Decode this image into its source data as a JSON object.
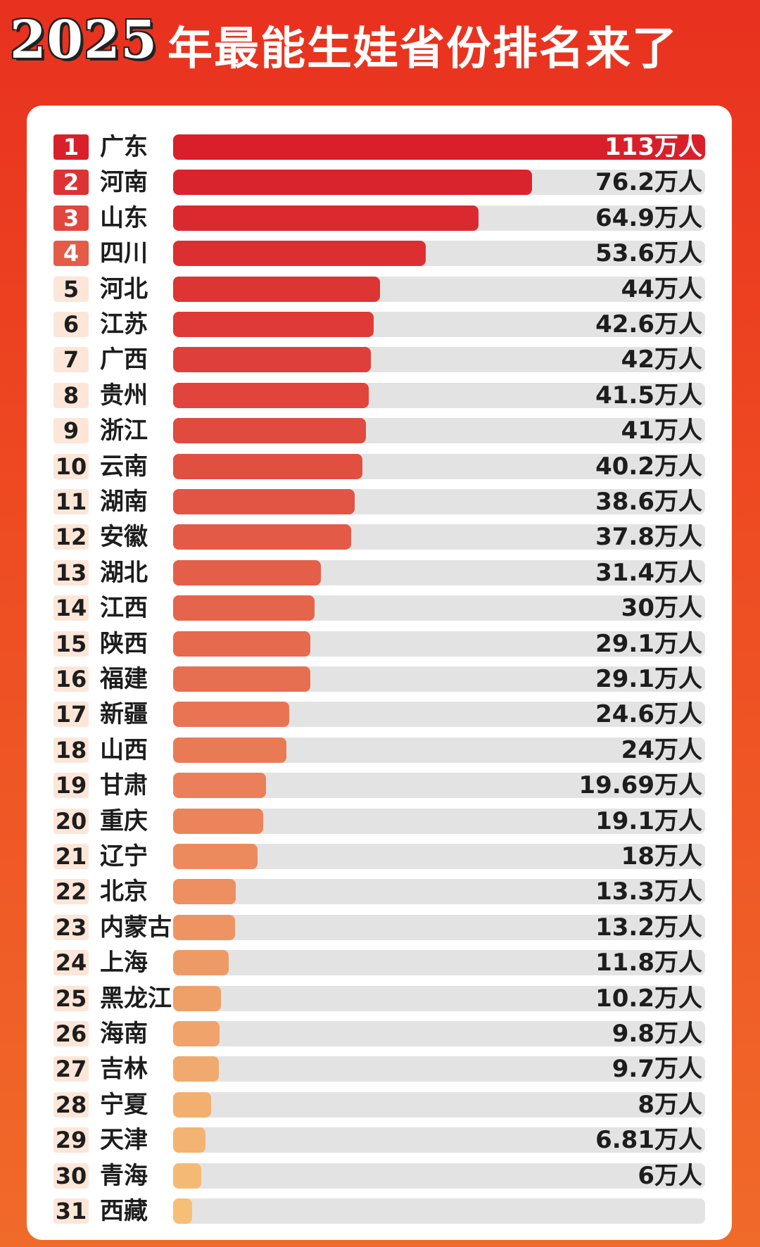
{
  "header": {
    "year": "2025",
    "title": "年最能生娃省份排名来了"
  },
  "colors": {
    "bar_top": "#d91f2a",
    "bar_bottom": "#f5bf78",
    "track": "#e3e3e3",
    "rank_badge_top": "#d91f2a",
    "rank_badge_light": "#fde6d8"
  },
  "chart_data": {
    "type": "bar",
    "orientation": "horizontal",
    "xlim": [
      0,
      113
    ],
    "unit_suffix": "万人",
    "categories": [
      "广东",
      "河南",
      "山东",
      "四川",
      "河北",
      "江苏",
      "广西",
      "贵州",
      "浙江",
      "云南",
      "湖南",
      "安徽",
      "湖北",
      "江西",
      "陕西",
      "福建",
      "新疆",
      "山西",
      "甘肃",
      "重庆",
      "辽宁",
      "北京",
      "内蒙古",
      "上海",
      "黑龙江",
      "海南",
      "吉林",
      "宁夏",
      "天津",
      "青海",
      "西藏"
    ],
    "ranks": [
      "1",
      "2",
      "3",
      "4",
      "5",
      "6",
      "7",
      "8",
      "9",
      "10",
      "11",
      "12",
      "13",
      "14",
      "15",
      "16",
      "17",
      "18",
      "19",
      "20",
      "21",
      "22",
      "23",
      "24",
      "25",
      "26",
      "27",
      "28",
      "29",
      "30",
      "31"
    ],
    "values": [
      113,
      76.2,
      64.9,
      53.6,
      44,
      42.6,
      42,
      41.5,
      41,
      40.2,
      38.6,
      37.8,
      31.4,
      30,
      29.1,
      29.1,
      24.6,
      24,
      19.69,
      19.1,
      18,
      13.3,
      13.2,
      11.8,
      10.2,
      9.8,
      9.7,
      8,
      6.81,
      6,
      4
    ],
    "value_labels": [
      "113万人",
      "76.2万人",
      "64.9万人",
      "53.6万人",
      "44万人",
      "42.6万人",
      "42万人",
      "41.5万人",
      "41万人",
      "40.2万人",
      "38.6万人",
      "37.8万人",
      "31.4万人",
      "30万人",
      "29.1万人",
      "29.1万人",
      "24.6万人",
      "24万人",
      "19.69万人",
      "19.1万人",
      "18万人",
      "13.3万人",
      "13.2万人",
      "11.8万人",
      "10.2万人",
      "9.8万人",
      "9.7万人",
      "8万人",
      "6.81万人",
      "6万人",
      ""
    ]
  }
}
